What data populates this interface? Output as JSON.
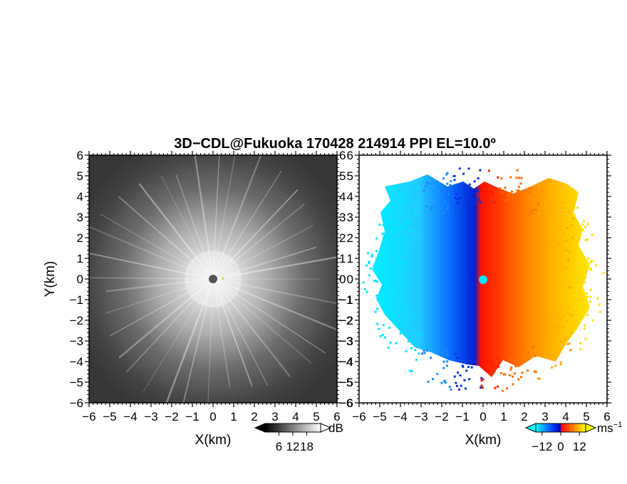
{
  "title": "3D−CDL@Fukuoka 170428 214914 PPI EL=10.0º",
  "chart_data": [
    {
      "type": "heatmap",
      "panel": "left",
      "quantity": "reflectivity",
      "xlabel": "X(km)",
      "ylabel": "Y(km)",
      "xlim": [
        -6,
        6
      ],
      "ylim": [
        -6,
        6
      ],
      "x_ticks": [
        -6,
        -5,
        -4,
        -3,
        -2,
        -1,
        0,
        1,
        2,
        3,
        4,
        5,
        6
      ],
      "y_ticks": [
        -6,
        -5,
        -4,
        -3,
        -2,
        -1,
        0,
        1,
        2,
        3,
        4,
        5,
        6
      ],
      "colorbar": {
        "unit": "dB",
        "ticks": [
          6,
          12,
          18
        ],
        "colors": [
          "#000000",
          "#ffffff"
        ]
      },
      "radar_site": [
        0,
        0
      ]
    },
    {
      "type": "heatmap",
      "panel": "right",
      "quantity": "doppler-velocity",
      "xlabel": "X(km)",
      "ylabel": "",
      "xlim": [
        -6,
        6
      ],
      "ylim": [
        -6,
        6
      ],
      "x_ticks": [
        -6,
        -5,
        -4,
        -3,
        -2,
        -1,
        0,
        1,
        2,
        3,
        4,
        5,
        6
      ],
      "y_ticks": [
        -6,
        -5,
        -4,
        -3,
        -2,
        -1,
        0,
        1,
        2,
        3,
        4,
        5,
        6
      ],
      "colorbar": {
        "unit": "ms",
        "unit_exp": "−1",
        "ticks": [
          -12,
          0,
          12
        ],
        "colors": [
          "#00ffff",
          "#0050ff",
          "#0000c0",
          "#ff0000",
          "#ff8000",
          "#ffff00"
        ]
      },
      "radar_site": [
        0,
        0
      ]
    }
  ]
}
